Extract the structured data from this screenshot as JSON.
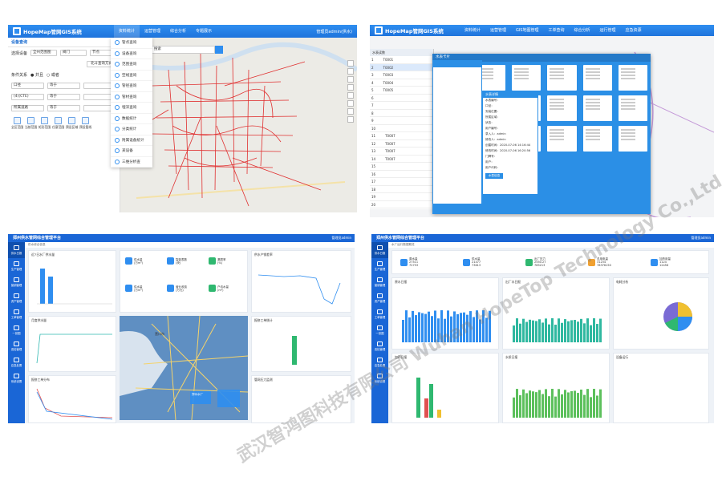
{
  "shot1": {
    "brand": "HopeMap管网GIS系统",
    "nav": [
      "资料统计",
      "运营管理",
      "综合分析",
      "专题展示"
    ],
    "user": "管理员admin(供水)",
    "panel_title": "设备查询",
    "filters": [
      {
        "label": "选择设备",
        "value": "全州范围图",
        "extra": "阀门",
        "extra2": "节点"
      },
      {
        "label": "",
        "value": "",
        "extra": "",
        "extra2": "",
        "button": "北斗查询方式"
      }
    ],
    "cond_label": "条件关系",
    "cond_opts": [
      "并且",
      "或者"
    ],
    "cond_rows": [
      {
        "field": "口径",
        "op": "等于"
      },
      {
        "field": "(4)(CTE)",
        "op": "等于"
      },
      {
        "field": "所属道路",
        "op": "等于"
      }
    ],
    "tools": [
      "全区范围",
      "当前范围",
      "矩形范围",
      "任意范围",
      "预设区域",
      "预设管线"
    ],
    "dropdown": [
      "管点查询",
      "设备查询",
      "范围查询",
      "空线查询",
      "管径查询",
      "管材查询",
      "埋深查询",
      "数据统计",
      "分类统计",
      "附属设备统计",
      "某设备",
      "三维分析查"
    ],
    "search_placeholder": "搜索"
  },
  "shot2": {
    "brand": "HopeMap管网GIS系统",
    "nav": [
      "资料统计",
      "运营管理",
      "GIS地图管理",
      "工单查询",
      "综合分析",
      "运行管理",
      "应急资源"
    ],
    "dialog_title": "水表卡片",
    "table_title": "水表读数",
    "table_rows": [
      {
        "n": "1",
        "id": "T0001"
      },
      {
        "n": "2",
        "id": "T0002"
      },
      {
        "n": "3",
        "id": "T0003"
      },
      {
        "n": "4",
        "id": "T0004"
      },
      {
        "n": "5",
        "id": "T0005"
      },
      {
        "n": "6",
        "id": ""
      },
      {
        "n": "7",
        "id": ""
      },
      {
        "n": "8",
        "id": ""
      },
      {
        "n": "9",
        "id": ""
      },
      {
        "n": "10",
        "id": ""
      },
      {
        "n": "11",
        "id": "T0007"
      },
      {
        "n": "12",
        "id": "T0007"
      },
      {
        "n": "13",
        "id": "T0007"
      },
      {
        "n": "14",
        "id": "T0007"
      },
      {
        "n": "15",
        "id": ""
      },
      {
        "n": "16",
        "id": ""
      },
      {
        "n": "17",
        "id": ""
      },
      {
        "n": "18",
        "id": ""
      },
      {
        "n": "19",
        "id": ""
      },
      {
        "n": "20",
        "id": ""
      }
    ],
    "info_title": "水表详情",
    "info_rows": [
      "水表编号：",
      "口径：",
      "安装位置：",
      "所属区域：",
      "状态：",
      "用户编号：",
      "录入人：admin",
      "修改人：admin",
      "创建时间：2020-07-06 14:16:44",
      "修改时间：2020-07-06 16:20:56",
      "门牌号：",
      "用户：",
      "用户代码："
    ],
    "info_button": "水表信息"
  },
  "shot3": {
    "title": "郑州供水管网综合管理平台",
    "user": "管理员admin",
    "side": [
      "供水日报",
      "生产管理",
      "营销管理",
      "资产管理",
      "工单管理",
      "一张图",
      "巡检管理",
      "应急处置",
      "系统设置"
    ],
    "crumb": "供水综合信息",
    "tiles": [
      {
        "label": "供水量",
        "sub": "(万m³)"
      },
      {
        "label": "智能表数",
        "sub": "(块)"
      },
      {
        "label": "漏损率",
        "sub": "(%)"
      },
      {
        "label": "供水量",
        "sub": "(万m³)"
      },
      {
        "label": "营业收费",
        "sub": "(万元)"
      },
      {
        "label": "户均水量",
        "sub": "(m³)"
      }
    ],
    "panels": [
      "近7日水厂供水量",
      "月度供水量",
      "供水产销差率",
      "报修工单统计",
      "报修工单分布",
      "管线统计",
      "管网压力监测"
    ],
    "map_labels": [
      "营口市",
      "郑州水厂",
      "白沙镇",
      "王庄镇"
    ]
  },
  "shot4": {
    "title": "郑州供水管网综合管理平台",
    "user": "管理员admin",
    "side": [
      "供水日报",
      "生产管理",
      "营销管理",
      "资产管理",
      "工单管理",
      "一张图",
      "巡检管理",
      "应急处置",
      "系统设置"
    ],
    "crumb": "水厂运行数据概览",
    "kpis": [
      {
        "label": "原水量",
        "v1": "27511",
        "v2": "72753"
      },
      {
        "label": "供水量",
        "v1": "21477",
        "v2": "73613"
      },
      {
        "label": "出厂压力",
        "v1": "2550.27",
        "v2": "785213"
      },
      {
        "label": "总用电量",
        "v1": "31234",
        "v2": "78376150"
      },
      {
        "label": "加药用量",
        "v1": "1124",
        "v2": "12456"
      }
    ],
    "panels": [
      "原水日报",
      "出厂水日报",
      "电耗分析",
      "加药日报",
      "水质日报",
      "设备运行",
      "告警统计"
    ],
    "legend": [
      "原水量",
      "供水量",
      "电耗"
    ]
  },
  "watermark": "武汉智鸿图科技有限公司 Wuhan HopeTop Technology Co.,Ltd",
  "colors": {
    "primary": "#2f8ef0",
    "dark": "#1a66d6",
    "accent": "#e87a35",
    "green": "#2fb870"
  }
}
